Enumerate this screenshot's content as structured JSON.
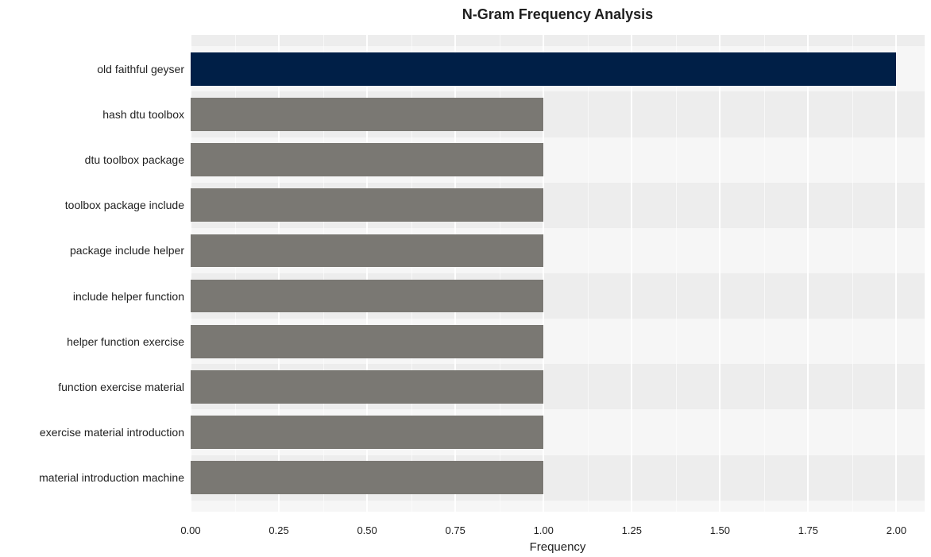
{
  "chart": {
    "type": "bar-horizontal",
    "title": "N-Gram Frequency Analysis",
    "title_fontsize": 18,
    "title_fontweight": "bold",
    "x_axis": {
      "title": "Frequency",
      "title_fontsize": 15,
      "min": 0.0,
      "max": 2.08,
      "major_ticks": [
        0.0,
        0.25,
        0.5,
        0.75,
        1.0,
        1.25,
        1.5,
        1.75,
        2.0
      ],
      "major_tick_labels": [
        "0.00",
        "0.25",
        "0.50",
        "0.75",
        "1.00",
        "1.25",
        "1.50",
        "1.75",
        "2.00"
      ],
      "tick_fontsize": 13
    },
    "y_axis": {
      "tick_fontsize": 14
    },
    "categories": [
      "old faithful geyser",
      "hash dtu toolbox",
      "dtu toolbox package",
      "toolbox package include",
      "package include helper",
      "include helper function",
      "helper function exercise",
      "function exercise material",
      "exercise material introduction",
      "material introduction machine"
    ],
    "values": [
      2.0,
      1.0,
      1.0,
      1.0,
      1.0,
      1.0,
      1.0,
      1.0,
      1.0,
      1.0
    ],
    "bar_colors": [
      "#001f47",
      "#7a7873",
      "#7a7873",
      "#7a7873",
      "#7a7873",
      "#7a7873",
      "#7a7873",
      "#7a7873",
      "#7a7873",
      "#7a7873"
    ],
    "bar_height_ratio": 0.73,
    "panel_stripe_a": "#ededed",
    "panel_stripe_b": "#f6f6f6",
    "grid_color": "#ffffff",
    "background_color": "#ffffff",
    "text_color": "#1f1f1f"
  }
}
